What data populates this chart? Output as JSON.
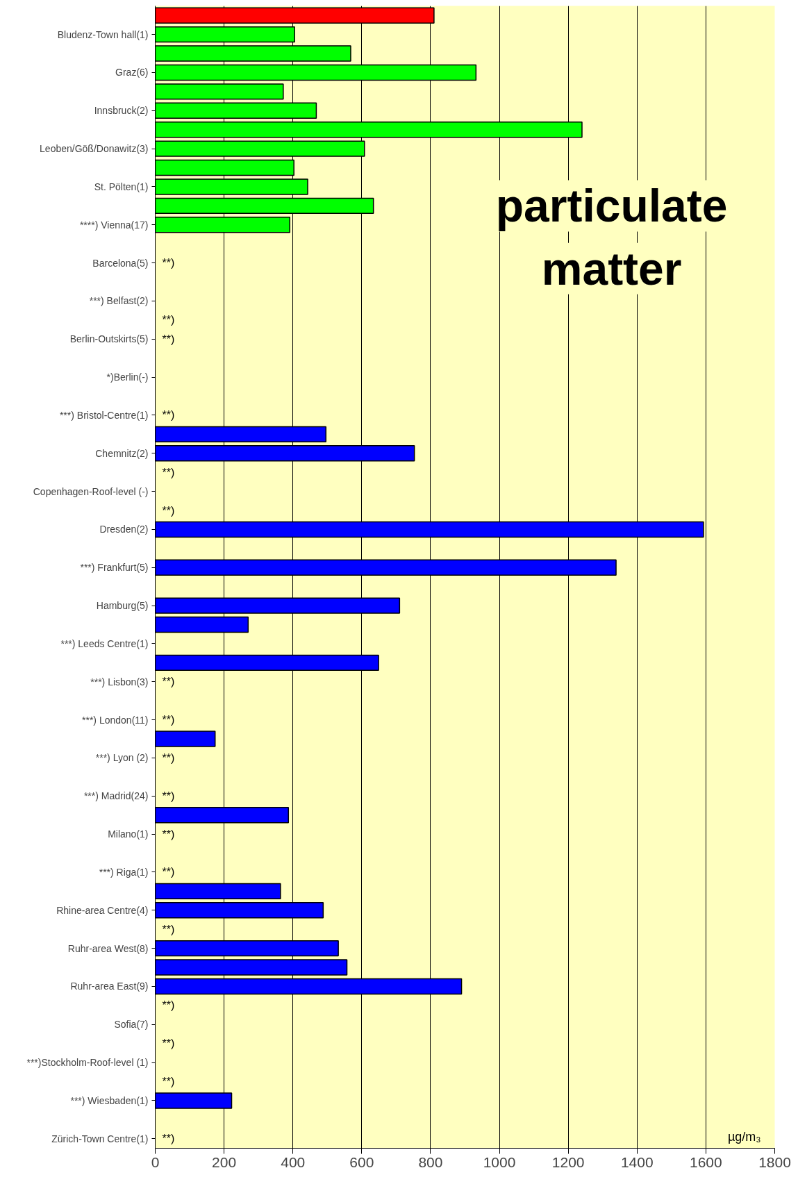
{
  "chart_data": {
    "type": "bar",
    "orientation": "horizontal",
    "categories": [
      null,
      "Bludenz-Town hall(1)",
      null,
      "Graz(6)",
      null,
      "Innsbruck(2)",
      null,
      "Leoben/Göß/Donawitz(3)",
      null,
      "St. Pölten(1)",
      null,
      "****) Vienna(17)",
      null,
      "Barcelona(5)",
      null,
      "***) Belfast(2)",
      null,
      "Berlin-Outskirts(5)",
      null,
      "*)Berlin(-)",
      null,
      "***) Bristol-Centre(1)",
      null,
      "Chemnitz(2)",
      null,
      "Copenhagen-Roof-level (-)",
      null,
      "Dresden(2)",
      null,
      "***) Frankfurt(5)",
      null,
      "Hamburg(5)",
      null,
      "***) Leeds Centre(1)",
      null,
      "***) Lisbon(3)",
      null,
      "***) London(11)",
      null,
      "***) Lyon (2)",
      null,
      "***) Madrid(24)",
      null,
      "Milano(1)",
      null,
      "***) Riga(1)",
      null,
      "Rhine-area Centre(4)",
      null,
      "Ruhr-area West(8)",
      null,
      "Ruhr-area East(9)",
      null,
      "Sofia(7)",
      null,
      "***)Stockholm-Roof-level (1)",
      null,
      "***) Wiesbaden(1)",
      null,
      "Zürich-Town Centre(1)"
    ],
    "values": [
      810,
      405,
      568,
      932,
      372,
      468,
      1240,
      608,
      403,
      443,
      634,
      391,
      null,
      null,
      null,
      null,
      null,
      null,
      null,
      null,
      null,
      null,
      496,
      753,
      null,
      null,
      null,
      1593,
      null,
      1339,
      null,
      710,
      270,
      null,
      649,
      null,
      null,
      null,
      174,
      null,
      null,
      null,
      387,
      null,
      null,
      null,
      364,
      488,
      null,
      532,
      557,
      890,
      null,
      null,
      null,
      null,
      null,
      222,
      null,
      null
    ],
    "colors": [
      "#ff0000",
      "#00ff00",
      "#00ff00",
      "#00ff00",
      "#00ff00",
      "#00ff00",
      "#00ff00",
      "#00ff00",
      "#00ff00",
      "#00ff00",
      "#00ff00",
      "#00ff00",
      "#0000ff",
      "#0000ff",
      "#0000ff",
      "#0000ff",
      "#0000ff",
      "#0000ff",
      "#0000ff",
      "#0000ff",
      "#0000ff",
      "#0000ff",
      "#0000ff",
      "#0000ff",
      "#0000ff",
      "#0000ff",
      "#0000ff",
      "#0000ff",
      "#0000ff",
      "#0000ff",
      "#0000ff",
      "#0000ff",
      "#0000ff",
      "#0000ff",
      "#0000ff",
      "#0000ff",
      "#0000ff",
      "#0000ff",
      "#0000ff",
      "#0000ff",
      "#0000ff",
      "#0000ff",
      "#0000ff",
      "#0000ff",
      "#0000ff",
      "#0000ff",
      "#0000ff",
      "#0000ff",
      "#0000ff",
      "#0000ff",
      "#0000ff",
      "#0000ff",
      "#0000ff",
      "#0000ff",
      "#0000ff",
      "#0000ff",
      "#0000ff",
      "#0000ff",
      "#0000ff",
      "#0000ff"
    ],
    "value_labels": [
      null,
      null,
      null,
      null,
      null,
      null,
      null,
      null,
      null,
      null,
      null,
      null,
      null,
      "**)",
      null,
      null,
      "**)",
      "**)",
      null,
      null,
      null,
      "**)",
      null,
      null,
      "**)",
      null,
      "**)",
      null,
      null,
      null,
      null,
      null,
      null,
      null,
      null,
      "**)",
      null,
      "**)",
      null,
      "**)",
      null,
      "**)",
      null,
      "**)",
      null,
      "**)",
      null,
      null,
      "**)",
      null,
      null,
      null,
      "**)",
      null,
      "**)",
      null,
      "**)",
      null,
      null,
      "**)"
    ],
    "xlim": [
      0,
      1800
    ],
    "xticks": [
      0,
      200,
      400,
      600,
      800,
      1000,
      1200,
      1400,
      1600,
      1800
    ],
    "grid": "x",
    "annotations": [
      "particulate matter",
      "µg/m₃"
    ]
  }
}
